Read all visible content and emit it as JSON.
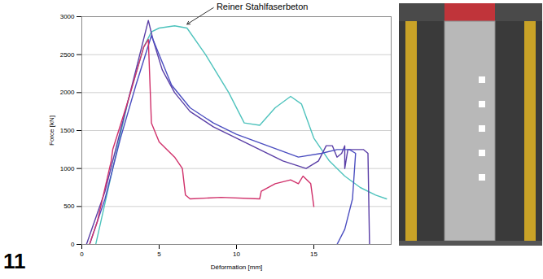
{
  "chart_data": {
    "type": "line",
    "figure_label": "11",
    "x_label": "Déformation [mm]",
    "y_label": "Force [kN]",
    "xlim": [
      0,
      20
    ],
    "xticks": [
      0,
      5,
      10,
      15
    ],
    "ylim": [
      0,
      3000
    ],
    "yticks": [
      0,
      500,
      1000,
      1500,
      2000,
      2500,
      3000
    ],
    "grid": true,
    "annotations": [
      {
        "text": "Reiner Stahlfaserbeton",
        "x": 8.6,
        "y": 3130,
        "arrow_x": 6.8,
        "arrow_y": 2900
      }
    ],
    "series": [
      {
        "color": "#4fc3bd",
        "x": [
          0.9,
          2,
          3,
          4,
          4.5,
          5,
          6,
          6.8,
          8,
          9.5,
          10.5,
          11.5,
          12.5,
          13.5,
          14.2,
          15,
          16,
          17,
          18,
          19,
          19.7
        ],
        "y": [
          0,
          1000,
          1900,
          2600,
          2800,
          2850,
          2880,
          2850,
          2500,
          2000,
          1600,
          1570,
          1800,
          1950,
          1850,
          1400,
          1100,
          900,
          750,
          650,
          600
        ]
      },
      {
        "color": "#5a3ea6",
        "x": [
          0.3,
          1.5,
          2.5,
          3.5,
          4.3,
          4.6,
          5.2,
          6,
          7,
          8.5,
          10,
          11.5,
          13,
          14.5,
          15.3,
          15.8,
          16.2,
          16.5,
          16.8,
          17,
          17,
          17.2,
          18.2,
          18.5,
          18.6
        ],
        "y": [
          0,
          700,
          1500,
          2300,
          2950,
          2700,
          2300,
          2000,
          1750,
          1550,
          1400,
          1250,
          1100,
          1000,
          1100,
          1300,
          1300,
          1150,
          1200,
          1300,
          1000,
          1250,
          1250,
          1200,
          0
        ]
      },
      {
        "color": "#4b4ec0",
        "x": [
          0.5,
          1.5,
          2.5,
          3.5,
          4.5,
          5,
          5.8,
          7,
          8.5,
          10,
          12,
          14,
          15.5,
          16.5,
          17.3,
          17.7,
          17.5,
          17,
          16.5
        ],
        "y": [
          0,
          600,
          1400,
          2100,
          2750,
          2500,
          2100,
          1800,
          1600,
          1450,
          1300,
          1150,
          1200,
          1250,
          1250,
          1200,
          600,
          200,
          0
        ]
      },
      {
        "color": "#d0306a",
        "x": [
          0.5,
          1,
          1.9,
          2,
          3,
          4,
          4.3,
          4.5,
          5,
          6,
          6.5,
          6.7,
          7,
          9,
          11.5,
          11.6,
          12.5,
          13.5,
          14,
          14.3,
          14.8,
          15
        ],
        "y": [
          0,
          300,
          1100,
          1250,
          1900,
          2600,
          2700,
          1600,
          1350,
          1150,
          1000,
          650,
          600,
          620,
          600,
          700,
          800,
          850,
          800,
          900,
          800,
          500
        ]
      }
    ]
  }
}
